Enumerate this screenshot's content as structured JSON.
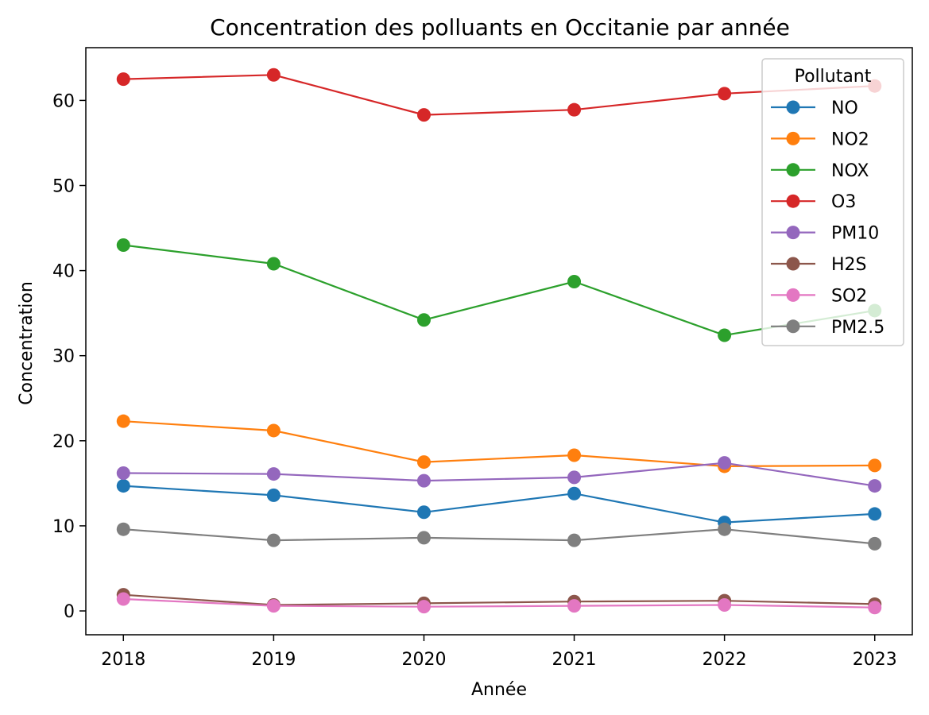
{
  "chart_data": {
    "type": "line",
    "title": "Concentration des polluants en Occitanie par année",
    "xlabel": "Année",
    "ylabel": "Concentration",
    "x": [
      2018,
      2019,
      2020,
      2021,
      2022,
      2023
    ],
    "xlim": [
      2017.75,
      2023.25
    ],
    "ylim": [
      -2.8,
      66.2
    ],
    "yticks": [
      0,
      10,
      20,
      30,
      40,
      50,
      60
    ],
    "grid": false,
    "legend": {
      "title": "Pollutant",
      "placement": "top-right"
    },
    "series": [
      {
        "name": "NO",
        "color": "#1f77b4",
        "values": [
          14.7,
          13.6,
          11.6,
          13.8,
          10.4,
          11.4
        ]
      },
      {
        "name": "NO2",
        "color": "#ff7f0e",
        "values": [
          22.3,
          21.2,
          17.5,
          18.3,
          17.0,
          17.1
        ]
      },
      {
        "name": "NOX",
        "color": "#2ca02c",
        "values": [
          43.0,
          40.8,
          34.2,
          38.7,
          32.4,
          35.3
        ]
      },
      {
        "name": "O3",
        "color": "#d62728",
        "values": [
          62.5,
          63.0,
          58.3,
          58.9,
          60.8,
          61.7
        ]
      },
      {
        "name": "PM10",
        "color": "#9467bd",
        "values": [
          16.2,
          16.1,
          15.3,
          15.7,
          17.4,
          14.7
        ]
      },
      {
        "name": "H2S",
        "color": "#8c564b",
        "values": [
          1.9,
          0.7,
          0.9,
          1.1,
          1.2,
          0.8
        ]
      },
      {
        "name": "SO2",
        "color": "#e377c2",
        "values": [
          1.4,
          0.6,
          0.5,
          0.6,
          0.7,
          0.4
        ]
      },
      {
        "name": "PM2.5",
        "color": "#7f7f7f",
        "values": [
          9.6,
          8.3,
          8.6,
          8.3,
          9.6,
          7.9
        ]
      }
    ]
  }
}
